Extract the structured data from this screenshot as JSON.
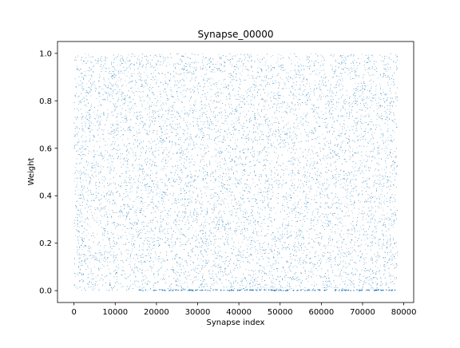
{
  "chart_data": {
    "type": "scatter",
    "title": "Synapse_00000",
    "xlabel": "Synapse index",
    "ylabel": "Weight",
    "xlim": [
      -4000,
      82400
    ],
    "ylim": [
      -0.05,
      1.05
    ],
    "xticks": [
      0,
      10000,
      20000,
      30000,
      40000,
      50000,
      60000,
      70000,
      80000
    ],
    "xtick_labels": [
      "0",
      "10000",
      "20000",
      "30000",
      "40000",
      "50000",
      "60000",
      "70000",
      "80000"
    ],
    "yticks": [
      0.0,
      0.2,
      0.4,
      0.6,
      0.8,
      1.0
    ],
    "ytick_labels": [
      "0.0",
      "0.2",
      "0.4",
      "0.6",
      "0.8",
      "1.0"
    ],
    "grid": false,
    "series": [
      {
        "color": "#1f77b4",
        "description_points": "dense uniform random weights for every synapse index",
        "x_range": [
          0,
          78400
        ],
        "y_range": [
          0.0,
          1.0
        ],
        "n_points": 78400
      }
    ],
    "extra_marks": {
      "color": "#1f77b4",
      "near_zero_cluster_x_range": [
        15500,
        78400
      ]
    }
  },
  "colors": {
    "series": "#1f77b4",
    "axes": "#000000",
    "background": "#ffffff"
  }
}
